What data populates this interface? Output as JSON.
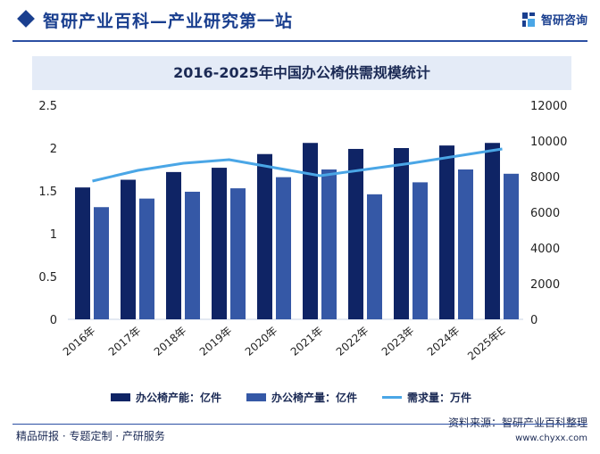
{
  "header": {
    "title": "智研产业百科—产业研究第一站",
    "brand": "智研咨询"
  },
  "colors": {
    "capacity": "#0f2465",
    "output": "#3558a6",
    "demand": "#4aa6e6",
    "accent": "#1a3f8f"
  },
  "chart_data": {
    "type": "bar",
    "title": "2016-2025年中国办公椅供需规模统计",
    "categories": [
      "2016年",
      "2017年",
      "2018年",
      "2019年",
      "2020年",
      "2021年",
      "2022年",
      "2023年",
      "2024年",
      "2025年E"
    ],
    "series": [
      {
        "name": "办公椅产能：亿件",
        "type": "bar",
        "axis": "left",
        "values": [
          1.54,
          1.63,
          1.72,
          1.77,
          1.93,
          2.06,
          1.99,
          2.0,
          2.03,
          2.06
        ]
      },
      {
        "name": "办公椅产量：亿件",
        "type": "bar",
        "axis": "left",
        "values": [
          1.31,
          1.41,
          1.49,
          1.53,
          1.66,
          1.75,
          1.46,
          1.6,
          1.75,
          1.7
        ]
      },
      {
        "name": "需求量：万件",
        "type": "line",
        "axis": "right",
        "values": [
          7750,
          8350,
          8750,
          8950,
          8500,
          8050,
          8400,
          8750,
          9150,
          9550
        ]
      }
    ],
    "y_left": {
      "min": 0,
      "max": 2.5,
      "ticks": [
        "0",
        "0.5",
        "1",
        "1.5",
        "2",
        "2.5"
      ]
    },
    "y_right": {
      "min": 0,
      "max": 12000,
      "ticks": [
        "0",
        "2000",
        "4000",
        "6000",
        "8000",
        "10000",
        "12000"
      ]
    },
    "legend_position": "bottom"
  },
  "footer": {
    "source": "资料来源：智研产业百科整理",
    "url": "www.chyxx.com",
    "slogan": "精品研报 · 专题定制 · 产研服务"
  }
}
